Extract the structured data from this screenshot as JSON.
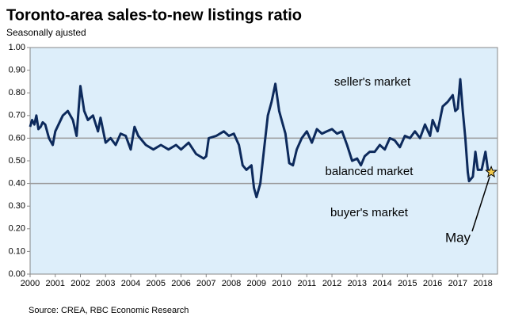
{
  "chart_data": {
    "type": "line",
    "title": "Toronto-area sales-to-new listings ratio",
    "subtitle": "Seasonally ajusted",
    "source": "Source: CREA, RBC Economic Research",
    "annotations": [
      "seller's market",
      "balanced market",
      "buyer's market",
      "May"
    ],
    "color": "#0d2a5c",
    "reference_lines": [
      0.6,
      0.4
    ],
    "x": [
      2000.0,
      2000.08,
      2000.17,
      2000.25,
      2000.33,
      2000.42,
      2000.5,
      2000.6,
      2000.75,
      2000.9,
      2001.0,
      2001.3,
      2001.5,
      2001.7,
      2001.85,
      2002.0,
      2002.15,
      2002.3,
      2002.5,
      2002.7,
      2002.8,
      2003.0,
      2003.2,
      2003.4,
      2003.6,
      2003.8,
      2004.0,
      2004.15,
      2004.3,
      2004.6,
      2004.9,
      2005.2,
      2005.5,
      2005.8,
      2006.0,
      2006.3,
      2006.6,
      2006.9,
      2007.0,
      2007.1,
      2007.4,
      2007.7,
      2007.9,
      2008.1,
      2008.3,
      2008.45,
      2008.6,
      2008.8,
      2008.9,
      2009.0,
      2009.15,
      2009.3,
      2009.45,
      2009.6,
      2009.75,
      2009.9,
      2010.0,
      2010.15,
      2010.3,
      2010.45,
      2010.6,
      2010.8,
      2011.0,
      2011.2,
      2011.4,
      2011.6,
      2011.8,
      2012.0,
      2012.2,
      2012.4,
      2012.6,
      2012.8,
      2013.0,
      2013.15,
      2013.3,
      2013.5,
      2013.7,
      2013.9,
      2014.1,
      2014.3,
      2014.5,
      2014.7,
      2014.9,
      2015.1,
      2015.3,
      2015.5,
      2015.7,
      2015.9,
      2016.0,
      2016.2,
      2016.4,
      2016.6,
      2016.8,
      2016.9,
      2017.0,
      2017.1,
      2017.2,
      2017.3,
      2017.4,
      2017.45,
      2017.6,
      2017.7,
      2017.8,
      2017.95,
      2018.1,
      2018.2,
      2018.33
    ],
    "values": [
      0.65,
      0.68,
      0.66,
      0.7,
      0.64,
      0.65,
      0.67,
      0.66,
      0.6,
      0.57,
      0.63,
      0.7,
      0.72,
      0.68,
      0.61,
      0.83,
      0.72,
      0.68,
      0.7,
      0.63,
      0.69,
      0.58,
      0.6,
      0.57,
      0.62,
      0.61,
      0.55,
      0.65,
      0.61,
      0.57,
      0.55,
      0.57,
      0.55,
      0.57,
      0.55,
      0.58,
      0.53,
      0.51,
      0.52,
      0.6,
      0.61,
      0.63,
      0.61,
      0.62,
      0.57,
      0.48,
      0.46,
      0.48,
      0.38,
      0.34,
      0.4,
      0.55,
      0.7,
      0.76,
      0.84,
      0.72,
      0.68,
      0.62,
      0.49,
      0.48,
      0.55,
      0.6,
      0.63,
      0.58,
      0.64,
      0.62,
      0.63,
      0.64,
      0.62,
      0.63,
      0.57,
      0.5,
      0.51,
      0.48,
      0.52,
      0.54,
      0.54,
      0.57,
      0.55,
      0.6,
      0.59,
      0.56,
      0.61,
      0.6,
      0.63,
      0.6,
      0.66,
      0.61,
      0.68,
      0.63,
      0.74,
      0.76,
      0.79,
      0.72,
      0.73,
      0.86,
      0.72,
      0.6,
      0.45,
      0.41,
      0.43,
      0.54,
      0.46,
      0.46,
      0.54,
      0.46,
      0.45
    ],
    "xlim": [
      2000,
      2018.58
    ],
    "xticks": [
      2000,
      2001,
      2002,
      2003,
      2004,
      2005,
      2006,
      2007,
      2008,
      2009,
      2010,
      2011,
      2012,
      2013,
      2014,
      2015,
      2016,
      2017,
      2018
    ],
    "ylim": [
      0,
      1
    ],
    "yticks": [
      {
        "value": 0,
        "label": "0.00"
      },
      {
        "value": 0.1,
        "label": "0.10"
      },
      {
        "value": 0.2,
        "label": "0.20"
      },
      {
        "value": 0.3,
        "label": "0.30"
      },
      {
        "value": 0.4,
        "label": "0.40"
      },
      {
        "value": 0.5,
        "label": "0.50"
      },
      {
        "value": 0.6,
        "label": "0.60"
      },
      {
        "value": 0.7,
        "label": "0.70"
      },
      {
        "value": 0.8,
        "label": "0.80"
      },
      {
        "value": 0.9,
        "label": "0.90"
      },
      {
        "value": 1,
        "label": "1.00"
      }
    ]
  }
}
